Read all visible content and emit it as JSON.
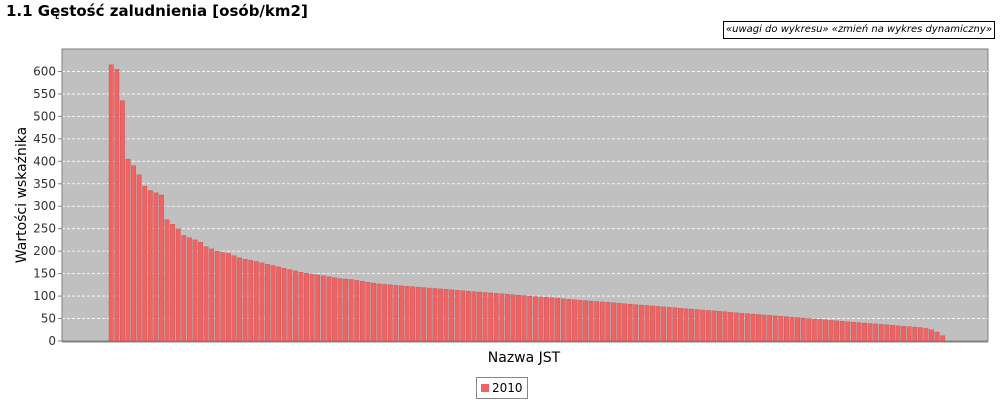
{
  "title": "1.1 Gęstość zaludnienia [osób/km2]",
  "links": {
    "notes": "«uwagi do wykresu»",
    "dynamic": "«zmień na wykres dynamiczny»"
  },
  "colors": {
    "plot_bg": "#c0c0c0",
    "bar": "#f26262",
    "bar_edge": "#b04848",
    "grid": "#ffffff"
  },
  "chart_data": {
    "type": "bar",
    "xlabel": "Nazwa JST",
    "ylabel": "Wartości wskaźnika",
    "ylim": [
      0,
      650
    ],
    "yticks": [
      0,
      50,
      100,
      150,
      200,
      250,
      300,
      350,
      400,
      450,
      500,
      550,
      600
    ],
    "grid": true,
    "legend_position": "bottom",
    "series": [
      {
        "name": "2010",
        "values": [
          615,
          605,
          535,
          405,
          390,
          370,
          345,
          335,
          330,
          325,
          270,
          260,
          250,
          235,
          230,
          225,
          220,
          210,
          205,
          200,
          197,
          195,
          190,
          185,
          182,
          180,
          177,
          174,
          171,
          168,
          165,
          162,
          159,
          156,
          153,
          151,
          149,
          147,
          145,
          143,
          141,
          139,
          138,
          137,
          135,
          133,
          131,
          129,
          127,
          126,
          125,
          124,
          123,
          122,
          121,
          120,
          119,
          118,
          117,
          116,
          115,
          114,
          113,
          112,
          111,
          110,
          109,
          108,
          107,
          106,
          105,
          104,
          103,
          102,
          101,
          100,
          99,
          98,
          97,
          96,
          95,
          94,
          93,
          92,
          91,
          90,
          89,
          88,
          87,
          86,
          85,
          84,
          83,
          82,
          81,
          80,
          79,
          78,
          77,
          76,
          75,
          74,
          73,
          72,
          71,
          70,
          69,
          68,
          67,
          66,
          65,
          64,
          63,
          62,
          61,
          60,
          59,
          58,
          57,
          56,
          55,
          54,
          53,
          52,
          51,
          50,
          49,
          48,
          47,
          46,
          45,
          44,
          43,
          42,
          41,
          40,
          39,
          38,
          37,
          36,
          35,
          34,
          33,
          32,
          31,
          30,
          28,
          25,
          20,
          12
        ]
      }
    ]
  }
}
